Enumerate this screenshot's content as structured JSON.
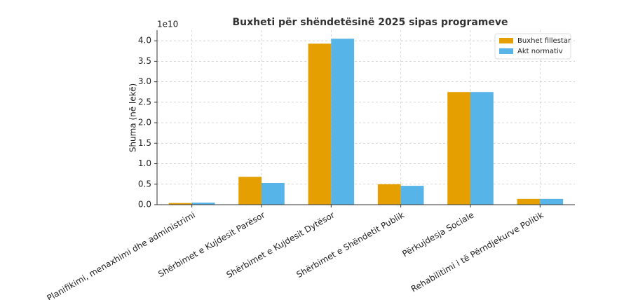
{
  "chart_data": {
    "type": "bar",
    "title": "Buxheti për shëndetësinë 2025 sipas programeve",
    "y_label": "Shuma (në lekë)",
    "y_offset_label": "1e10",
    "categories": [
      "Planifikimi, menaxhimi dhe administrimi",
      "Shërbimet e Kujdesit Parësor",
      "Shërbimet e Kujdesit Dytësor",
      "Shërbimet e Shëndetit Publik",
      "Përkujdesja Sociale",
      "Rehabilitimi i të Përndjekurve Politik"
    ],
    "series": [
      {
        "name": "Buxhet fillestar",
        "color": "#E69F00",
        "values": [
          0.04,
          0.68,
          3.93,
          0.5,
          2.75,
          0.14
        ]
      },
      {
        "name": "Akt normativ",
        "color": "#56B4E9",
        "values": [
          0.05,
          0.53,
          4.05,
          0.46,
          2.75,
          0.14
        ]
      }
    ],
    "ylim": [
      0,
      4.26
    ],
    "yticks": [
      {
        "value": 0,
        "label": "0.0"
      },
      {
        "value": 0.5,
        "label": "0.5"
      },
      {
        "value": 1,
        "label": "1.0"
      },
      {
        "value": 1.5,
        "label": "1.5"
      },
      {
        "value": 2,
        "label": "2.0"
      },
      {
        "value": 2.5,
        "label": "2.5"
      },
      {
        "value": 3,
        "label": "3.0"
      },
      {
        "value": 3.5,
        "label": "3.5"
      },
      {
        "value": 4,
        "label": "4.0"
      }
    ],
    "grid": true,
    "legend": "upper right"
  }
}
